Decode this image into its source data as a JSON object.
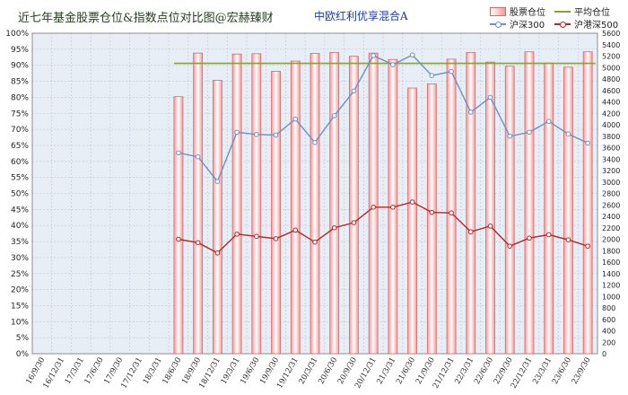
{
  "title": "近七年基金股票仓位&指数点位对比图@宏赫臻财",
  "subtitle": "中欧红利优享混合A",
  "legend": {
    "bar": "股票仓位",
    "avg": "平均仓位",
    "hs300": "沪深300",
    "csi500": "沪港深500"
  },
  "colors": {
    "bar_fill_top": "#f39a9a",
    "bar_fill_light": "#ffffff",
    "bar_border": "#d46a6a",
    "avg_line": "#8aa040",
    "hs300": "#6f8fc0",
    "csi500": "#b02828",
    "plot_bg": "#e8eef6",
    "grid": "#b8c4d8"
  },
  "chart_data": {
    "type": "bar",
    "title": "近七年基金股票仓位&指数点位对比图@宏赫臻财",
    "subtitle": "中欧红利优享混合A",
    "categories": [
      "16/9/30",
      "16/12/31",
      "17/3/31",
      "17/6/30",
      "17/9/30",
      "17/12/31",
      "18/3/31",
      "18/6/30",
      "18/9/30",
      "18/12/31",
      "19/3/31",
      "19/6/30",
      "19/9/30",
      "19/12/31",
      "20/3/31",
      "20/6/30",
      "20/9/30",
      "20/12/31",
      "21/3/31",
      "21/6/30",
      "21/9/30",
      "21/12/31",
      "22/3/31",
      "22/6/30",
      "22/9/30",
      "22/12/31",
      "23/3/31",
      "23/6/30",
      "23/9/30"
    ],
    "left_axis": {
      "ylim": [
        0,
        100
      ],
      "ticks": [
        "0%",
        "5%",
        "10%",
        "15%",
        "20%",
        "25%",
        "30%",
        "35%",
        "40%",
        "45%",
        "50%",
        "55%",
        "60%",
        "65%",
        "70%",
        "75%",
        "80%",
        "85%",
        "90%",
        "95%",
        "100%"
      ]
    },
    "right_axis": {
      "ylim": [
        0,
        5600
      ],
      "ticks": [
        "0",
        "200",
        "400",
        "600",
        "800",
        "1000",
        "1200",
        "1400",
        "1600",
        "1800",
        "2000",
        "2200",
        "2400",
        "2600",
        "2800",
        "3000",
        "3200",
        "3400",
        "3600",
        "3800",
        "4000",
        "4200",
        "4400",
        "4600",
        "4800",
        "5000",
        "5200",
        "5400",
        "5600"
      ]
    },
    "series": [
      {
        "name": "股票仓位",
        "kind": "bar",
        "axis": "left",
        "values": [
          null,
          null,
          null,
          null,
          null,
          null,
          null,
          80.2,
          93.8,
          85.3,
          93.5,
          93.6,
          88.1,
          91.3,
          93.7,
          94.0,
          92.8,
          93.8,
          91.8,
          82.9,
          84.2,
          91.9,
          94.0,
          91.0,
          89.7,
          94.2,
          90.7,
          89.4,
          94.2
        ]
      },
      {
        "name": "平均仓位",
        "kind": "line",
        "axis": "left",
        "values": [
          null,
          null,
          null,
          null,
          null,
          null,
          null,
          90.6,
          90.6,
          90.6,
          90.6,
          90.6,
          90.6,
          90.6,
          90.6,
          90.6,
          90.6,
          90.6,
          90.6,
          90.6,
          90.6,
          90.6,
          90.6,
          90.6,
          90.6,
          90.6,
          90.6,
          90.6,
          90.6
        ]
      },
      {
        "name": "沪深300",
        "kind": "line",
        "axis": "right",
        "values": [
          null,
          null,
          null,
          null,
          null,
          null,
          null,
          3510,
          3440,
          3010,
          3870,
          3830,
          3820,
          4100,
          3690,
          4160,
          4590,
          5210,
          5050,
          5220,
          4860,
          4930,
          4220,
          4480,
          3800,
          3870,
          4060,
          3840,
          3680
        ]
      },
      {
        "name": "沪港深500",
        "kind": "line",
        "axis": "right",
        "values": [
          null,
          null,
          null,
          null,
          null,
          null,
          null,
          2000,
          1940,
          1760,
          2090,
          2050,
          2010,
          2160,
          1950,
          2200,
          2290,
          2560,
          2560,
          2650,
          2470,
          2460,
          2130,
          2230,
          1880,
          2020,
          2080,
          1990,
          1880
        ]
      }
    ],
    "grid": true,
    "legend_position": "top-right"
  }
}
